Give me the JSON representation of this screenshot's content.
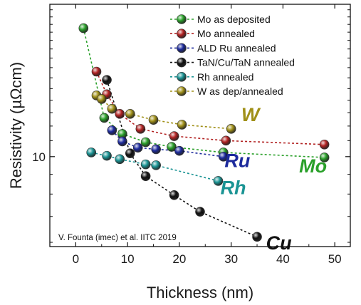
{
  "chart_data": {
    "type": "scatter",
    "xlabel": "Thickness (nm)",
    "ylabel": "Resistivity (µΩcm)",
    "xlim": [
      -5,
      53
    ],
    "ylim": [
      5.85,
      24.8
    ],
    "y_scale": "log",
    "x_ticks": [
      0,
      10,
      20,
      30,
      40,
      50
    ],
    "y_ticks": [
      10
    ],
    "grid": false,
    "legend_position": "top-right",
    "series": [
      {
        "name": "Mo as deposited",
        "color": "#2aa02a",
        "x": [
          1.5,
          5.5,
          9,
          13.5,
          18.5,
          28.5,
          48
        ],
        "y": [
          21.5,
          12.6,
          11.45,
          10.9,
          10.6,
          10.25,
          9.95
        ]
      },
      {
        "name": "Mo annealed",
        "color": "#b22222",
        "x": [
          4,
          6,
          8.5,
          12.5,
          19,
          29,
          48
        ],
        "y": [
          16.6,
          14.5,
          12.9,
          11.8,
          11.3,
          11.0,
          10.75
        ]
      },
      {
        "name": "ALD Ru annealed",
        "color": "#1c2a9c",
        "x": [
          7,
          9,
          12,
          15.5,
          20,
          28.5
        ],
        "y": [
          11.7,
          10.95,
          10.55,
          10.45,
          10.35,
          10.0
        ]
      },
      {
        "name": "TaN/Cu/TaN annealed",
        "color": "#111111",
        "x": [
          6,
          10.5,
          13.5,
          19,
          24,
          35
        ],
        "y": [
          15.8,
          10.2,
          8.9,
          7.95,
          7.2,
          6.2
        ]
      },
      {
        "name": "Rh annealed",
        "color": "#1a9494",
        "x": [
          3,
          6,
          8.5,
          13.5,
          15.5,
          27.5
        ],
        "y": [
          10.25,
          10.05,
          9.85,
          9.55,
          9.5,
          8.65
        ]
      },
      {
        "name": "W as dep/annealed",
        "color": "#a09018",
        "x": [
          4,
          5,
          7,
          10.5,
          15,
          20.5,
          30
        ],
        "y": [
          14.4,
          14.1,
          13.3,
          12.9,
          12.45,
          12.1,
          11.8
        ]
      }
    ],
    "annotations": [
      {
        "text": "W",
        "color": "#a09018",
        "x": 33.7,
        "y": 12.35
      },
      {
        "text": "Mo",
        "color": "#2aa02a",
        "x": 45.8,
        "y": 9.1
      },
      {
        "text": "Ru",
        "color": "#1c2a9c",
        "x": 31.2,
        "y": 9.4
      },
      {
        "text": "Rh",
        "color": "#1a9494",
        "x": 30.4,
        "y": 8.0
      },
      {
        "text": "Cu",
        "color": "#111111",
        "x": 39.2,
        "y": 5.75
      }
    ],
    "credit": "V. Founta (imec) et al. IITC 2019"
  }
}
